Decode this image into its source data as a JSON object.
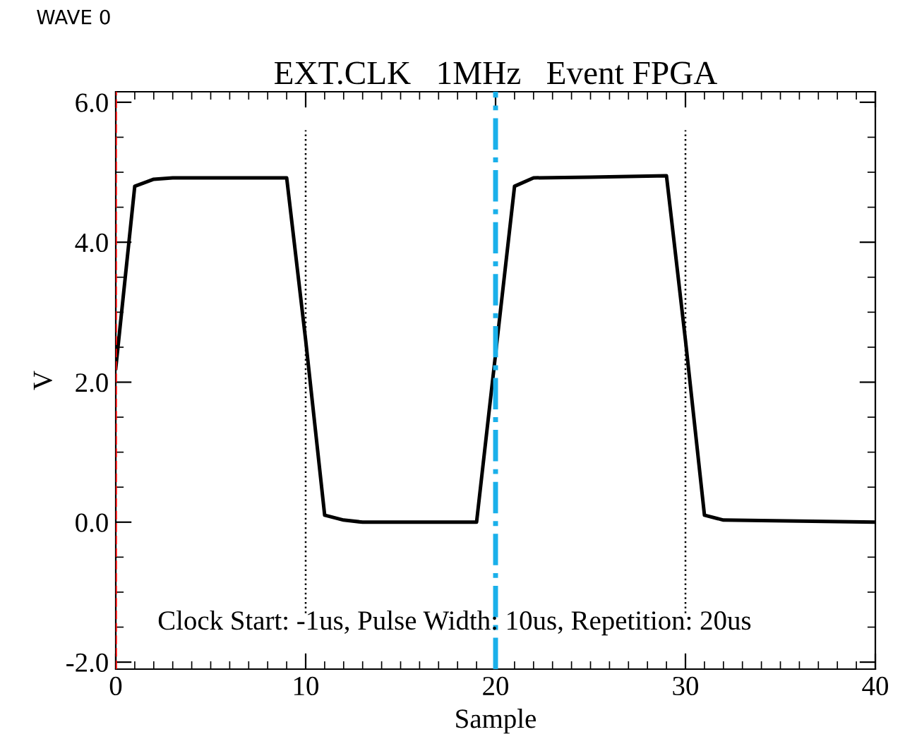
{
  "chart_data": {
    "type": "line",
    "title": "EXT.CLK   1MHz   Event FPGA",
    "xlabel": "Sample",
    "ylabel": "V",
    "x": [
      0,
      1,
      2,
      3,
      9,
      10,
      11,
      12,
      13,
      19,
      20,
      21,
      22,
      25,
      29,
      30,
      31,
      32,
      40
    ],
    "series": [
      {
        "color": "#000000",
        "values": [
          2.2,
          4.8,
          4.9,
          4.92,
          4.92,
          2.6,
          0.1,
          0.03,
          0.0,
          0.0,
          2.4,
          4.8,
          4.92,
          4.93,
          4.95,
          2.6,
          0.1,
          0.03,
          0.0
        ]
      }
    ],
    "xlim": [
      0,
      40
    ],
    "ylim": [
      -2.1,
      6.15
    ],
    "xticks": [
      0,
      10,
      20,
      30,
      40
    ],
    "yticks": [
      {
        "value": -2,
        "label": "-2.0"
      },
      {
        "value": 0,
        "label": "0.0"
      },
      {
        "value": 2,
        "label": "2.0"
      },
      {
        "value": 4,
        "label": "4.0"
      },
      {
        "value": 6,
        "label": "6.0"
      }
    ],
    "ref_lines": [
      {
        "axis": "x",
        "value": 0,
        "color": "#ff0000",
        "line_style": "dashed"
      },
      {
        "axis": "x",
        "value": 20,
        "color": "#1ab0ea",
        "line_style": "dashdot"
      },
      {
        "axis": "x",
        "value": 10,
        "color": "#000000",
        "line_style": "dotted"
      },
      {
        "axis": "x",
        "value": 30,
        "color": "#000000",
        "line_style": "dotted"
      }
    ],
    "annotations": [
      "WAVE 0",
      "Clock Start: -1us, Pulse Width: 10us, Repetition: 20us"
    ],
    "grid": false,
    "legend": false,
    "marker": "none",
    "line_style": "solid"
  }
}
